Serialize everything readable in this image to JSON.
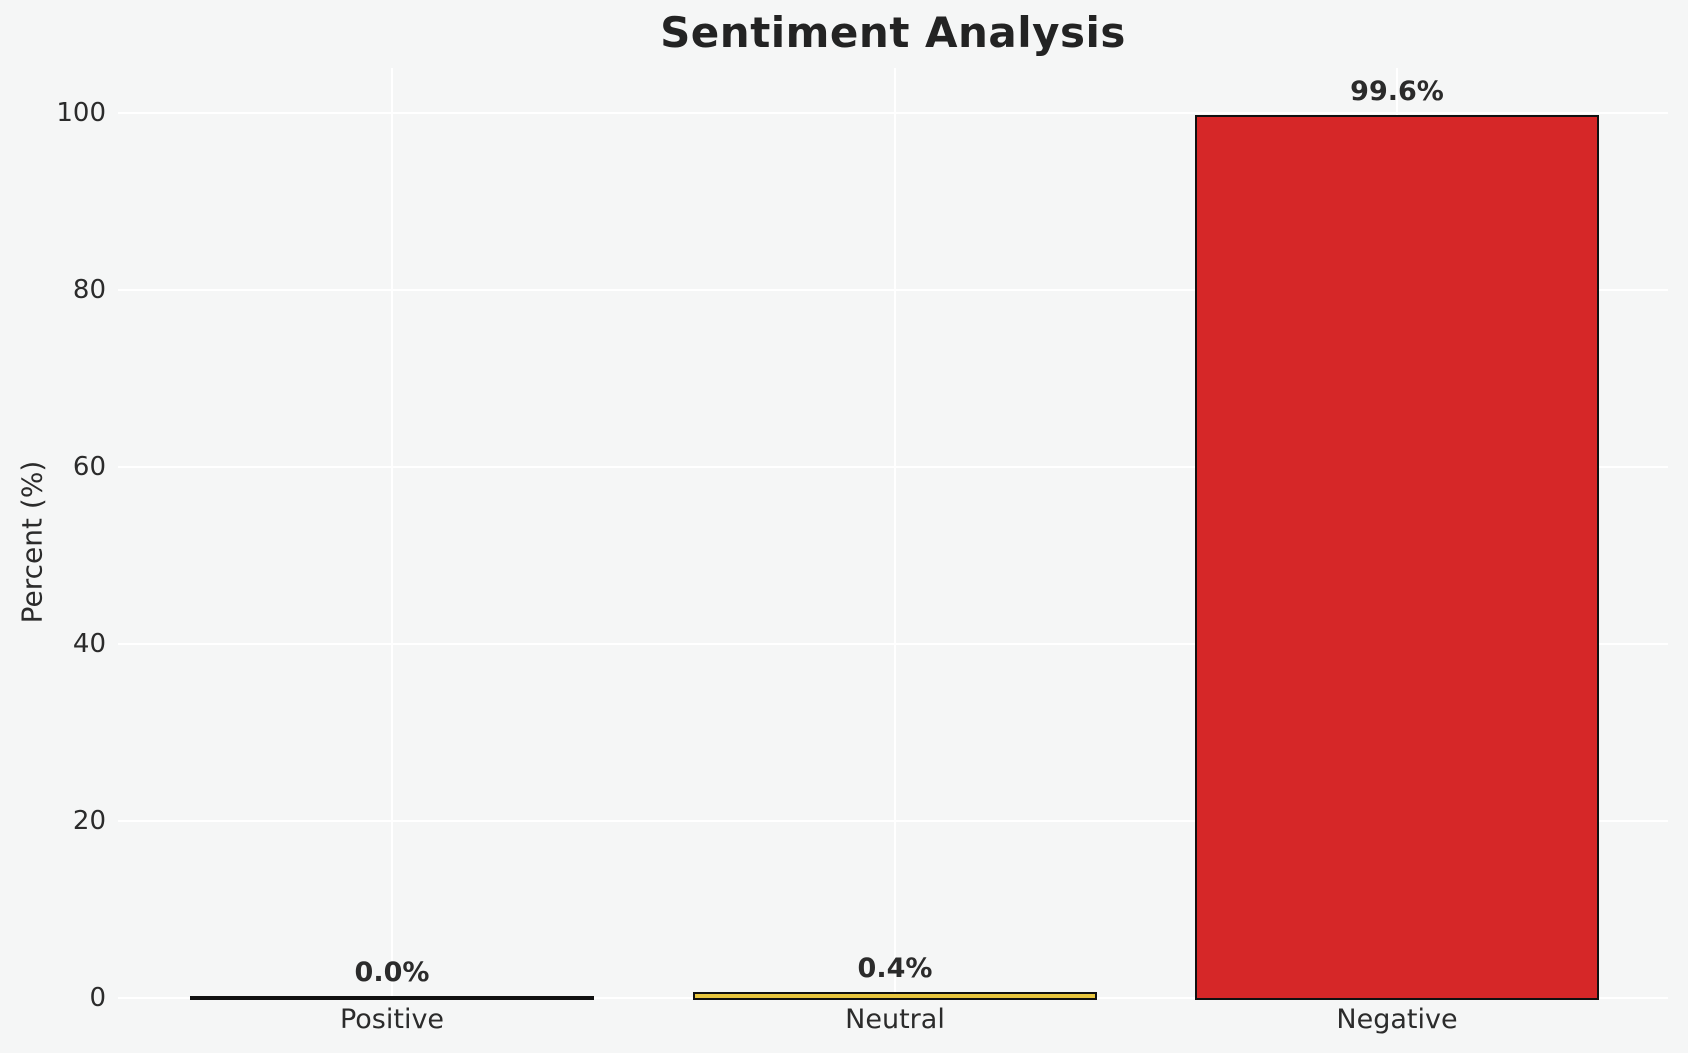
{
  "chart_data": {
    "type": "bar",
    "title": "Sentiment Analysis",
    "ylabel": "Percent (%)",
    "xlabel": "",
    "categories": [
      "Positive",
      "Neutral",
      "Negative"
    ],
    "values": [
      0.0,
      0.4,
      99.6
    ],
    "value_labels": [
      "0.0%",
      "0.4%",
      "99.6%"
    ],
    "yticks": [
      0,
      20,
      40,
      60,
      80,
      100
    ],
    "ylim": [
      0,
      105
    ],
    "grid": "both",
    "legend": "none",
    "colors": {
      "background": "#f5f6f6",
      "gridline": "#ffffff",
      "bar_fills": [
        "transparent",
        "#e8c63f",
        "#d62728"
      ],
      "bar_edge": "#111111",
      "tick_text": "#2b2b2b",
      "title_text": "#232323"
    }
  }
}
